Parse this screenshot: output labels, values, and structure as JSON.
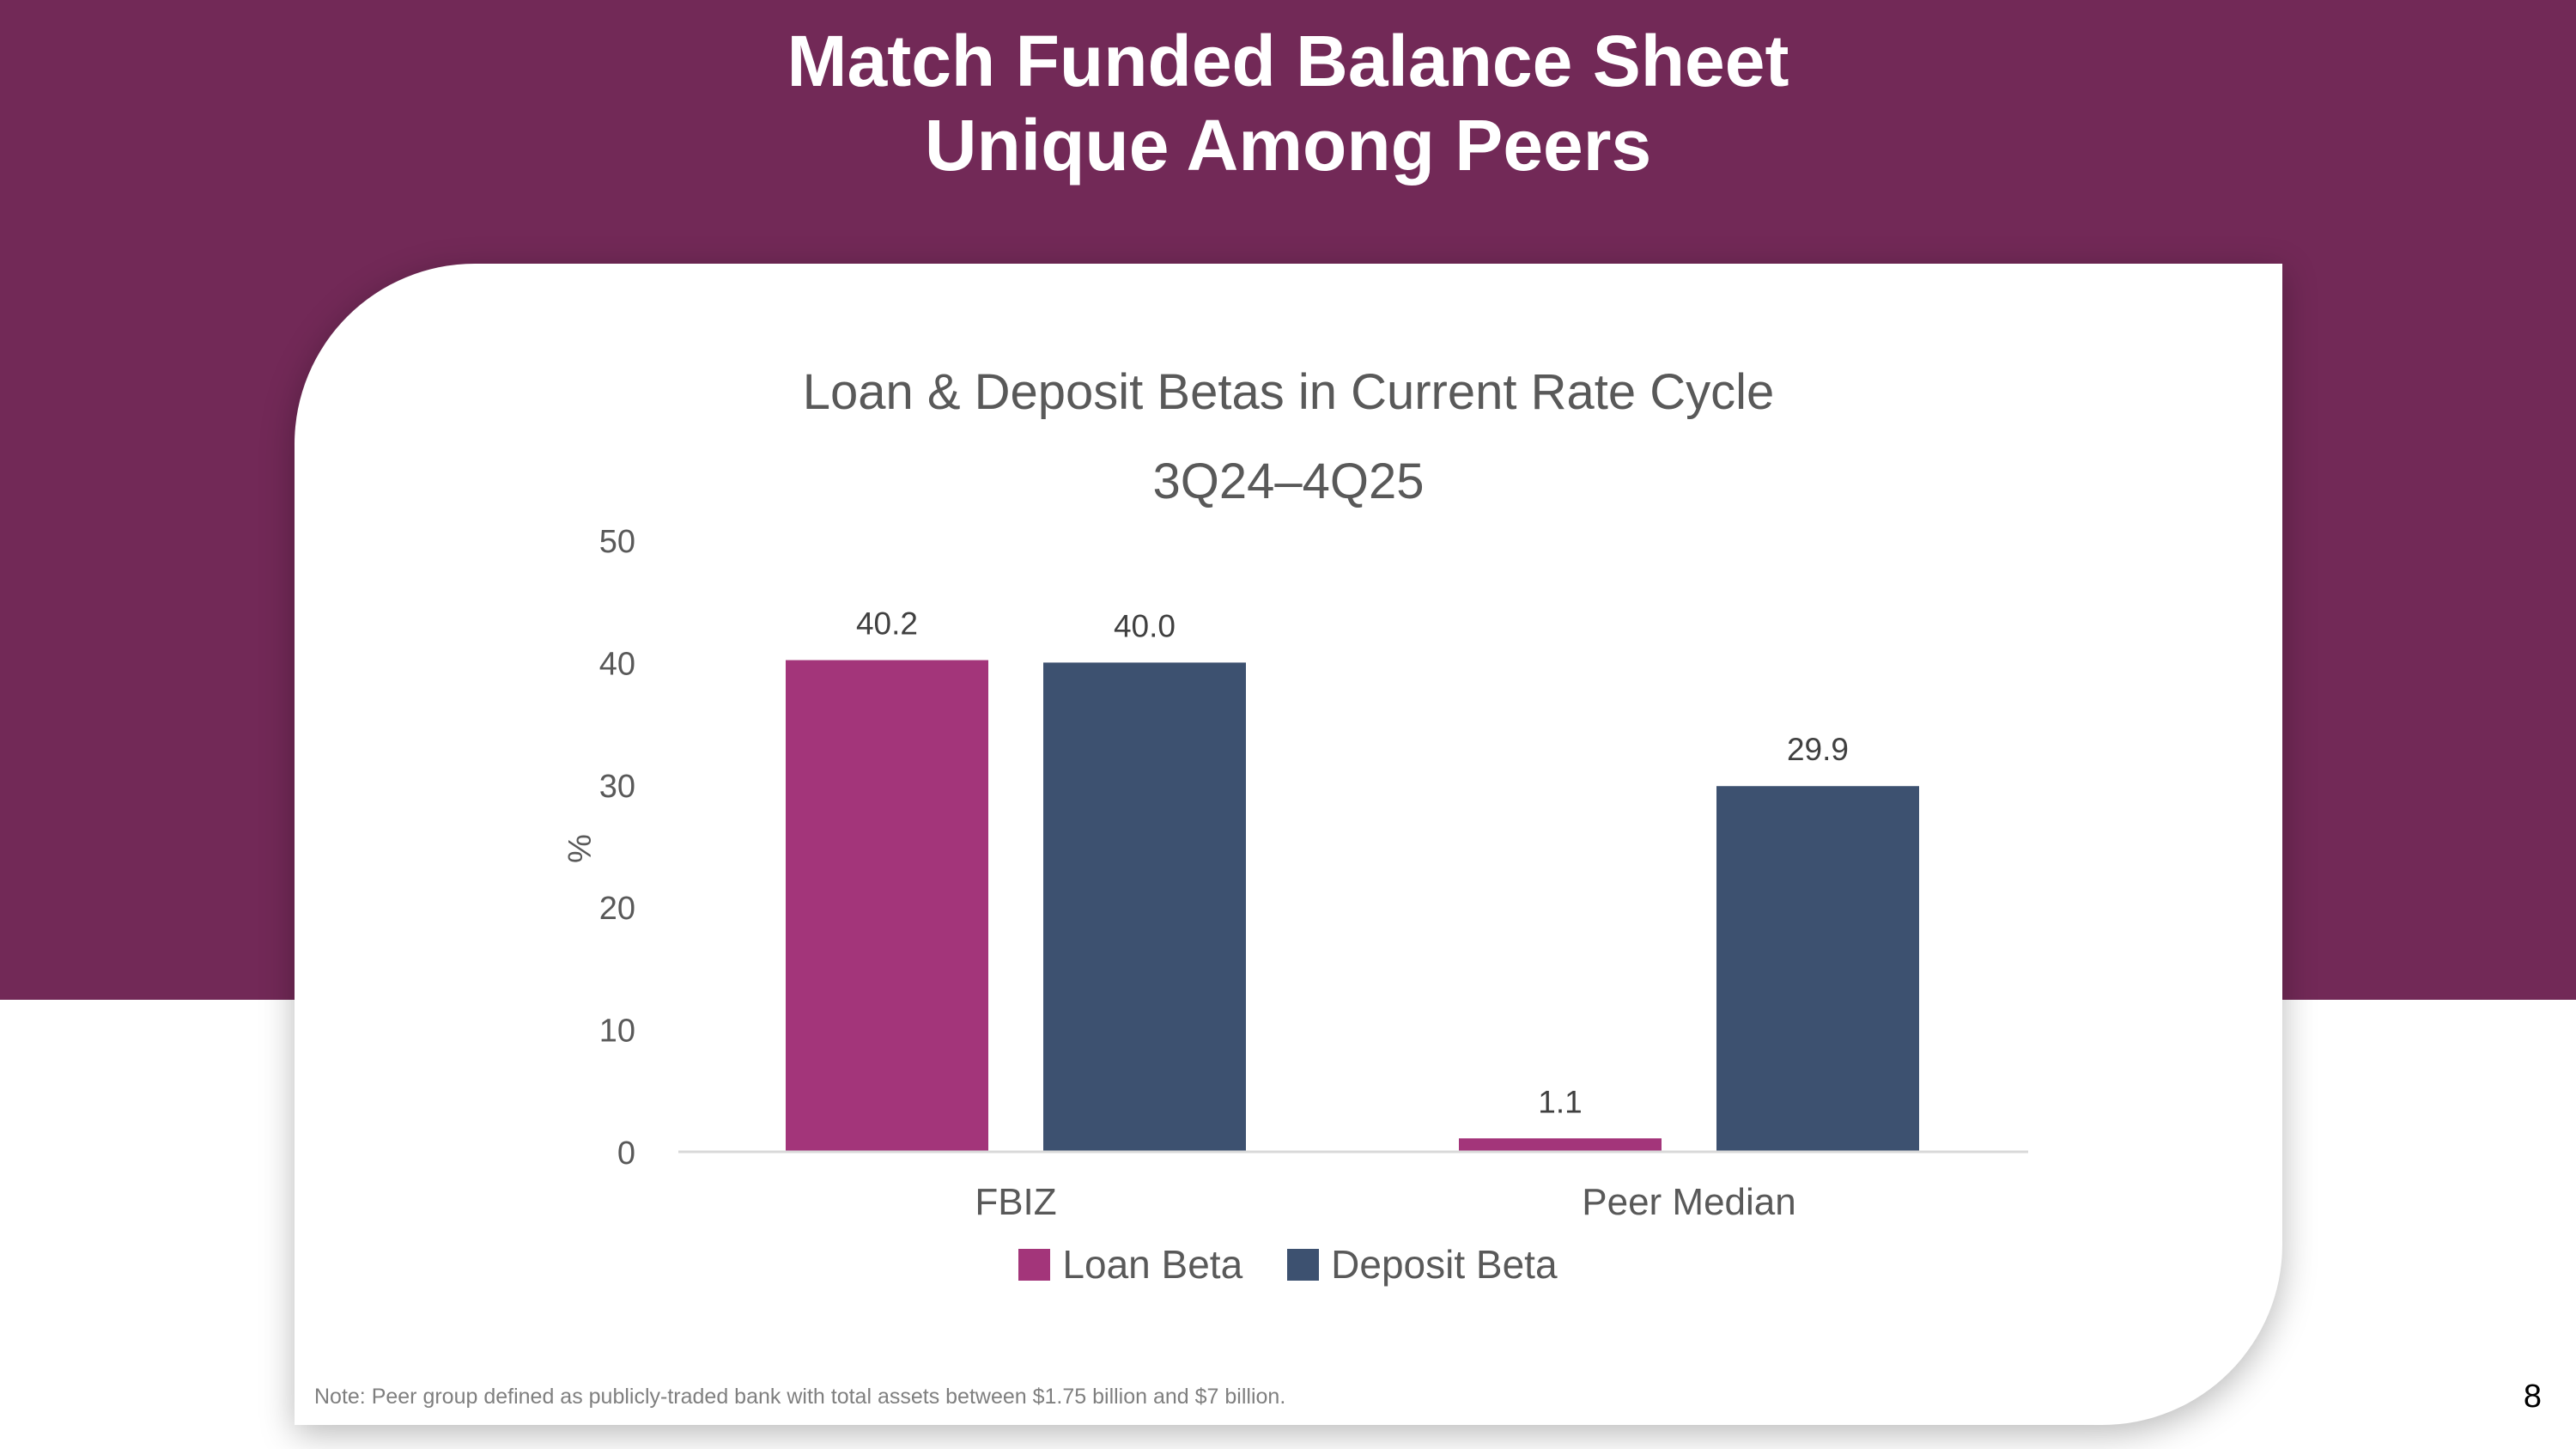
{
  "slide": {
    "title_line1": "Match Funded Balance Sheet",
    "title_line2": "Unique Among Peers",
    "footnote": "Note: Peer group defined as publicly-traded bank with total assets between $1.75 billion and $7 billion.",
    "page_number": "8"
  },
  "colors": {
    "band": "#722957",
    "loan": "#A3357A",
    "deposit": "#3D5170"
  },
  "chart_data": {
    "type": "bar",
    "title": "Loan & Deposit Betas in Current Rate Cycle",
    "subtitle": "3Q24–4Q25",
    "xlabel": "",
    "ylabel": "%",
    "ylim": [
      0,
      50
    ],
    "yticks": [
      0,
      10,
      20,
      30,
      40,
      50
    ],
    "categories": [
      "FBIZ",
      "Peer Median"
    ],
    "series": [
      {
        "name": "Loan Beta",
        "values": [
          40.2,
          1.1
        ],
        "labels": [
          "40.2",
          "1.1"
        ],
        "color": "#A3357A"
      },
      {
        "name": "Deposit Beta",
        "values": [
          40.0,
          29.9
        ],
        "labels": [
          "40.0",
          "29.9"
        ],
        "color": "#3D5170"
      }
    ],
    "legend": "bottom",
    "grid": false
  }
}
